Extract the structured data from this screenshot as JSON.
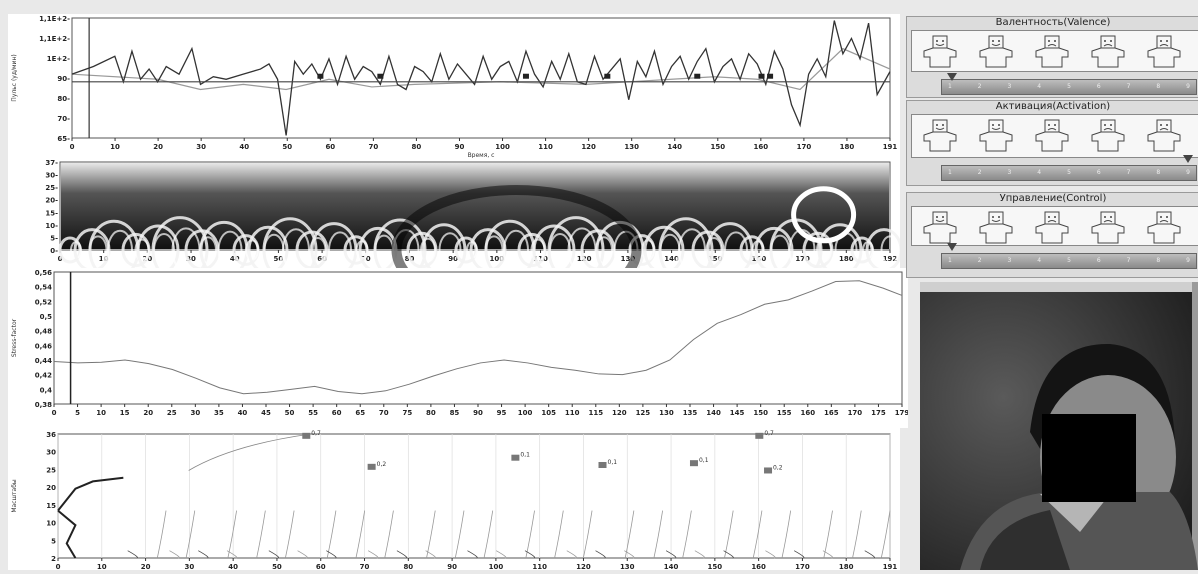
{
  "chart1": {
    "ylabel": "Пульс (уд/мин)",
    "xlabel": "Время, с",
    "ytick_labels": [
      "1,1E+2-",
      "1,1E+2-",
      "1E+2-",
      "90-",
      "80-",
      "70-",
      "65-"
    ],
    "xtick_labels": [
      "0",
      "10",
      "20",
      "30",
      "40",
      "50",
      "60",
      "70",
      "80",
      "90",
      "100",
      "110",
      "120",
      "130",
      "140",
      "150",
      "160",
      "170",
      "180",
      "191"
    ]
  },
  "chart2": {
    "ytick_labels": [
      "37-",
      "30-",
      "25-",
      "20-",
      "15-",
      "10-",
      "5-",
      "0-"
    ],
    "xtick_labels": [
      "0",
      "10",
      "20",
      "30",
      "40",
      "50",
      "60",
      "70",
      "80",
      "90",
      "100",
      "110",
      "120",
      "130",
      "140",
      "150",
      "160",
      "170",
      "180",
      "192"
    ]
  },
  "chart3": {
    "ylabel": "Stress-factor",
    "ytick_labels": [
      "0,56",
      "0,54",
      "0,52",
      "0,5",
      "0,48",
      "0,46",
      "0,44",
      "0,42",
      "0,4",
      "0,38"
    ],
    "xtick_labels": [
      "0",
      "5",
      "10",
      "15",
      "20",
      "25",
      "30",
      "35",
      "40",
      "45",
      "50",
      "55",
      "60",
      "65",
      "70",
      "75",
      "80",
      "85",
      "90",
      "95",
      "100",
      "105",
      "110",
      "115",
      "120",
      "125",
      "130",
      "135",
      "140",
      "145",
      "150",
      "155",
      "160",
      "165",
      "170",
      "175",
      "179"
    ]
  },
  "chart4": {
    "ylabel": "Масштабы",
    "ytick_labels": [
      "36",
      "30",
      "25",
      "20",
      "15",
      "10",
      "5",
      "2"
    ],
    "xtick_labels": [
      "0",
      "10",
      "20",
      "30",
      "40",
      "50",
      "60",
      "70",
      "80",
      "90",
      "100",
      "110",
      "120",
      "130",
      "140",
      "150",
      "160",
      "170",
      "180",
      "191"
    ],
    "marker_labels": [
      "0,7",
      "0,2",
      "0,1",
      "0,1",
      "0,1",
      "0,7",
      "0,2"
    ]
  },
  "sam": {
    "valence": {
      "title": "Валентность(Valence)"
    },
    "activation": {
      "title": "Активация(Activation)"
    },
    "control": {
      "title": "Управление(Control)"
    },
    "scale": [
      "1",
      "2",
      "3",
      "4",
      "5",
      "6",
      "7",
      "8",
      "9"
    ]
  },
  "chart_data": [
    {
      "type": "line",
      "ylabel": "Пульс (уд/мин)",
      "xlabel": "Время, с",
      "xlim": [
        0,
        191
      ],
      "ylim": [
        65,
        112
      ],
      "series": [
        {
          "x": [
            0,
            5,
            10,
            12,
            14,
            16,
            18,
            20,
            22,
            25,
            28,
            30,
            33,
            36,
            40,
            44,
            46,
            48,
            50,
            52,
            54,
            56,
            58,
            60,
            62,
            64,
            66,
            68,
            70,
            72,
            74,
            76,
            78,
            80,
            82,
            84,
            86,
            88,
            90,
            92,
            94,
            96,
            98,
            100,
            102,
            104,
            106,
            108,
            110,
            112,
            114,
            116,
            118,
            120,
            122,
            124,
            126,
            128,
            130,
            132,
            134,
            136,
            138,
            140,
            142,
            144,
            146,
            148,
            150,
            152,
            154,
            156,
            158,
            160,
            162,
            164,
            166,
            168,
            170,
            172,
            174,
            176,
            178,
            180,
            182,
            184,
            186,
            188,
            191
          ],
          "y": [
            90,
            93,
            97,
            87,
            99,
            88,
            92,
            87,
            93,
            90,
            100,
            86,
            89,
            88,
            90,
            92,
            94,
            88,
            66,
            95,
            90,
            94,
            88,
            96,
            86,
            97,
            88,
            93,
            91,
            86,
            97,
            86,
            84,
            93,
            91,
            87,
            98,
            88,
            94,
            90,
            86,
            97,
            88,
            93,
            95,
            87,
            99,
            90,
            85,
            95,
            88,
            98,
            87,
            86,
            97,
            88,
            92,
            96,
            80,
            95,
            89,
            99,
            86,
            93,
            97,
            88,
            95,
            100,
            87,
            93,
            96,
            88,
            98,
            94,
            86,
            99,
            92,
            78,
            70,
            90,
            96,
            89,
            111,
            98,
            104,
            96,
            110,
            82,
            91
          ]
        },
        {
          "x": [
            0,
            20,
            30,
            40,
            50,
            60,
            70,
            80,
            100,
            120,
            140,
            150,
            160,
            170,
            180,
            191
          ],
          "y": [
            90,
            88,
            84,
            86,
            84,
            88,
            85,
            86,
            87,
            86,
            88,
            89,
            88,
            84,
            100,
            92
          ]
        }
      ]
    },
    {
      "type": "line",
      "ylabel": "Stress-factor",
      "xlim": [
        0,
        179
      ],
      "ylim": [
        0.38,
        0.56
      ],
      "series": [
        {
          "x": [
            0,
            5,
            10,
            15,
            20,
            25,
            30,
            35,
            40,
            45,
            50,
            55,
            60,
            65,
            70,
            75,
            80,
            85,
            90,
            95,
            100,
            105,
            110,
            115,
            120,
            125,
            130,
            135,
            140,
            145,
            150,
            155,
            160,
            165,
            170,
            175,
            179
          ],
          "y": [
            0.438,
            0.436,
            0.437,
            0.44,
            0.435,
            0.427,
            0.415,
            0.402,
            0.394,
            0.396,
            0.4,
            0.404,
            0.397,
            0.394,
            0.398,
            0.407,
            0.418,
            0.428,
            0.436,
            0.44,
            0.436,
            0.43,
            0.426,
            0.421,
            0.42,
            0.426,
            0.44,
            0.468,
            0.49,
            0.502,
            0.516,
            0.522,
            0.534,
            0.547,
            0.548,
            0.538,
            0.528
          ]
        }
      ]
    }
  ]
}
